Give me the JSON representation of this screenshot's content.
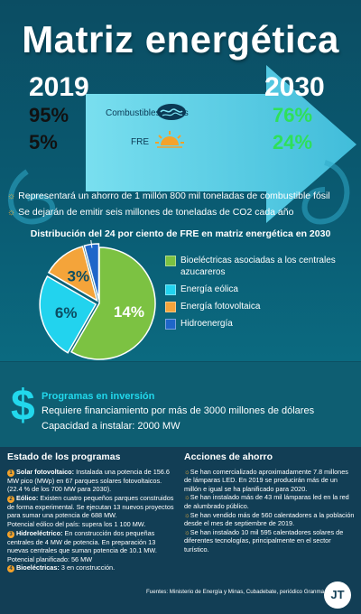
{
  "header": {
    "title": "Matriz energética",
    "year_start": "2019",
    "year_end": "2030"
  },
  "sources": {
    "fossil": {
      "label": "Combustibles fósiles",
      "pct_2019": "95%",
      "pct_2030": "76%"
    },
    "fre": {
      "label": "FRE",
      "pct_2019": "5%",
      "pct_2030": "24%"
    }
  },
  "bullets": [
    "Representará un ahorro de 1 millón 800 mil toneladas de combustible fósil",
    "Se dejarán de emitir seis millones de toneladas de CO2 cada año"
  ],
  "chart_data": {
    "type": "pie",
    "title": "Distribución del 24 por ciento de FRE en matriz energética en 2030",
    "unit": "%",
    "slices": [
      {
        "label": "Bioeléctricas asociadas a los centrales azucareros",
        "value": 14,
        "display": "14%",
        "color": "#7cc242"
      },
      {
        "label": "Energía eólica",
        "value": 6,
        "display": "6%",
        "color": "#22d3ee"
      },
      {
        "label": "Energía fotovoltaica",
        "value": 3,
        "display": "3%",
        "color": "#f4a43a"
      },
      {
        "label": "Hidroenergía",
        "value": 1,
        "display": "1%",
        "color": "#1e66c9"
      }
    ],
    "legend_placement": "right"
  },
  "investment": {
    "title": "Programas en inversión",
    "line1": "Requiere financiamiento por  más de 3000 millones de dólares",
    "line2": "Capacidad a instalar: 2000 MW"
  },
  "estado": {
    "title": "Estado de los programas",
    "items": [
      {
        "n": "1",
        "head": "Solar fotovoltaico:",
        "text": " Instalada una potencia de 156.6 MW pico (MWp) en 67 parques solares fotovoltaicos. (22.4 % de los 700 MW para 2030)."
      },
      {
        "n": "2",
        "head": "Eólico:",
        "text": " Existen cuatro pequeños parques construidos de forma experimental. Se ejecutan 13 nuevos proyectos para sumar una potencia de 688 MW."
      },
      {
        "n": "",
        "head": "",
        "text": "Potencial eólico del país: supera los 1 100 MW."
      },
      {
        "n": "3",
        "head": "Hidroeléctrico:",
        "text": " En construcción dos pequeñas centrales de 4 MW de potencia. En preparación  13 nuevas centrales que suman potencia de 10.1 MW."
      },
      {
        "n": "",
        "head": "",
        "text": "Potencial planificado: 56 MW"
      },
      {
        "n": "4",
        "head": "Bioeléctricas:",
        "text": " 3 en construcción."
      }
    ]
  },
  "acciones": {
    "title": "Acciones de ahorro",
    "items": [
      "Se han comercializado aproximadamente 7.8 millones de lámparas LED. En 2019 se producirán más de un millón e igual se ha planificado para 2020.",
      "Se han instalado más de 43 mil lámparas led en la red de alumbrado público.",
      "Se han vendido más de 560 calentadores a la población desde el mes de septiembre de 2019.",
      "Se han instalado 10 mil 595 calentadores solares de diferentes tecnologías, principalmente en el sector turístico."
    ]
  },
  "footer": {
    "source": "Fuentes: Ministerio de Energía y Minas, Cubadebate, periódico Granma",
    "logo": "JT"
  },
  "colors": {
    "accent_cyan": "#22d8ec",
    "green": "#2ee05a",
    "orange": "#f4a22a",
    "bg_dark": "#123e55"
  }
}
